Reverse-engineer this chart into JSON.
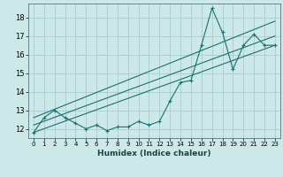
{
  "xlabel": "Humidex (Indice chaleur)",
  "ylabel": "",
  "background_color": "#cce8e8",
  "grid_color": "#aacccc",
  "line_color": "#1a7070",
  "xlim": [
    -0.5,
    23.5
  ],
  "ylim": [
    11.5,
    18.75
  ],
  "yticks": [
    12,
    13,
    14,
    15,
    16,
    17,
    18
  ],
  "xticks": [
    0,
    1,
    2,
    3,
    4,
    5,
    6,
    7,
    8,
    9,
    10,
    11,
    12,
    13,
    14,
    15,
    16,
    17,
    18,
    19,
    20,
    21,
    22,
    23
  ],
  "main_x": [
    0,
    1,
    2,
    3,
    4,
    5,
    6,
    7,
    8,
    9,
    10,
    11,
    12,
    13,
    14,
    15,
    16,
    17,
    18,
    19,
    20,
    21,
    22,
    23
  ],
  "main_y": [
    11.8,
    12.6,
    13.0,
    12.6,
    12.3,
    12.0,
    12.2,
    11.9,
    12.1,
    12.1,
    12.4,
    12.2,
    12.4,
    13.5,
    14.5,
    14.6,
    16.5,
    18.5,
    17.2,
    15.2,
    16.5,
    17.1,
    16.5,
    16.5
  ],
  "upper_line_x": [
    0,
    23
  ],
  "upper_line_y": [
    12.6,
    17.8
  ],
  "lower_line_x": [
    0,
    23
  ],
  "lower_line_y": [
    11.8,
    16.5
  ],
  "mid_line_x": [
    0,
    23
  ],
  "mid_line_y": [
    12.2,
    17.0
  ]
}
